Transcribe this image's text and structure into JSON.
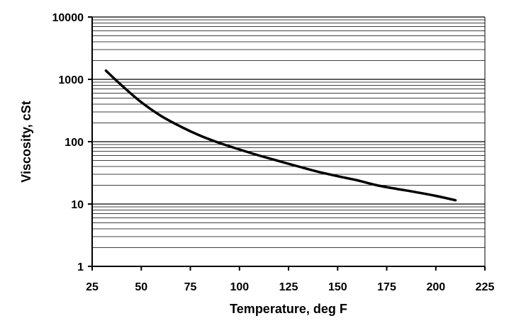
{
  "chart_data": {
    "type": "line",
    "title": "",
    "xlabel": "Temperature, deg F",
    "ylabel": "Viscosity, cSt",
    "xlim": [
      25,
      225
    ],
    "ylim": [
      1,
      10000
    ],
    "yscale": "log",
    "grid": {
      "x": false,
      "y": true,
      "y_minor": true
    },
    "legend": "none",
    "x_ticks": [
      "25",
      "50",
      "75",
      "100",
      "125",
      "150",
      "175",
      "200",
      "225"
    ],
    "y_ticks": [
      "1",
      "10",
      "100",
      "1000",
      "10000"
    ],
    "series": [
      {
        "color": "#000000",
        "x": [
          32,
          40,
          50,
          60,
          70,
          80,
          90,
          100,
          110,
          120,
          130,
          140,
          150,
          160,
          170,
          180,
          190,
          200,
          210
        ],
        "y": [
          1380,
          800,
          430,
          260,
          175,
          125,
          95,
          75,
          60,
          49,
          40,
          33,
          28,
          24,
          20,
          17.5,
          15.5,
          13.5,
          11.5
        ]
      }
    ]
  }
}
